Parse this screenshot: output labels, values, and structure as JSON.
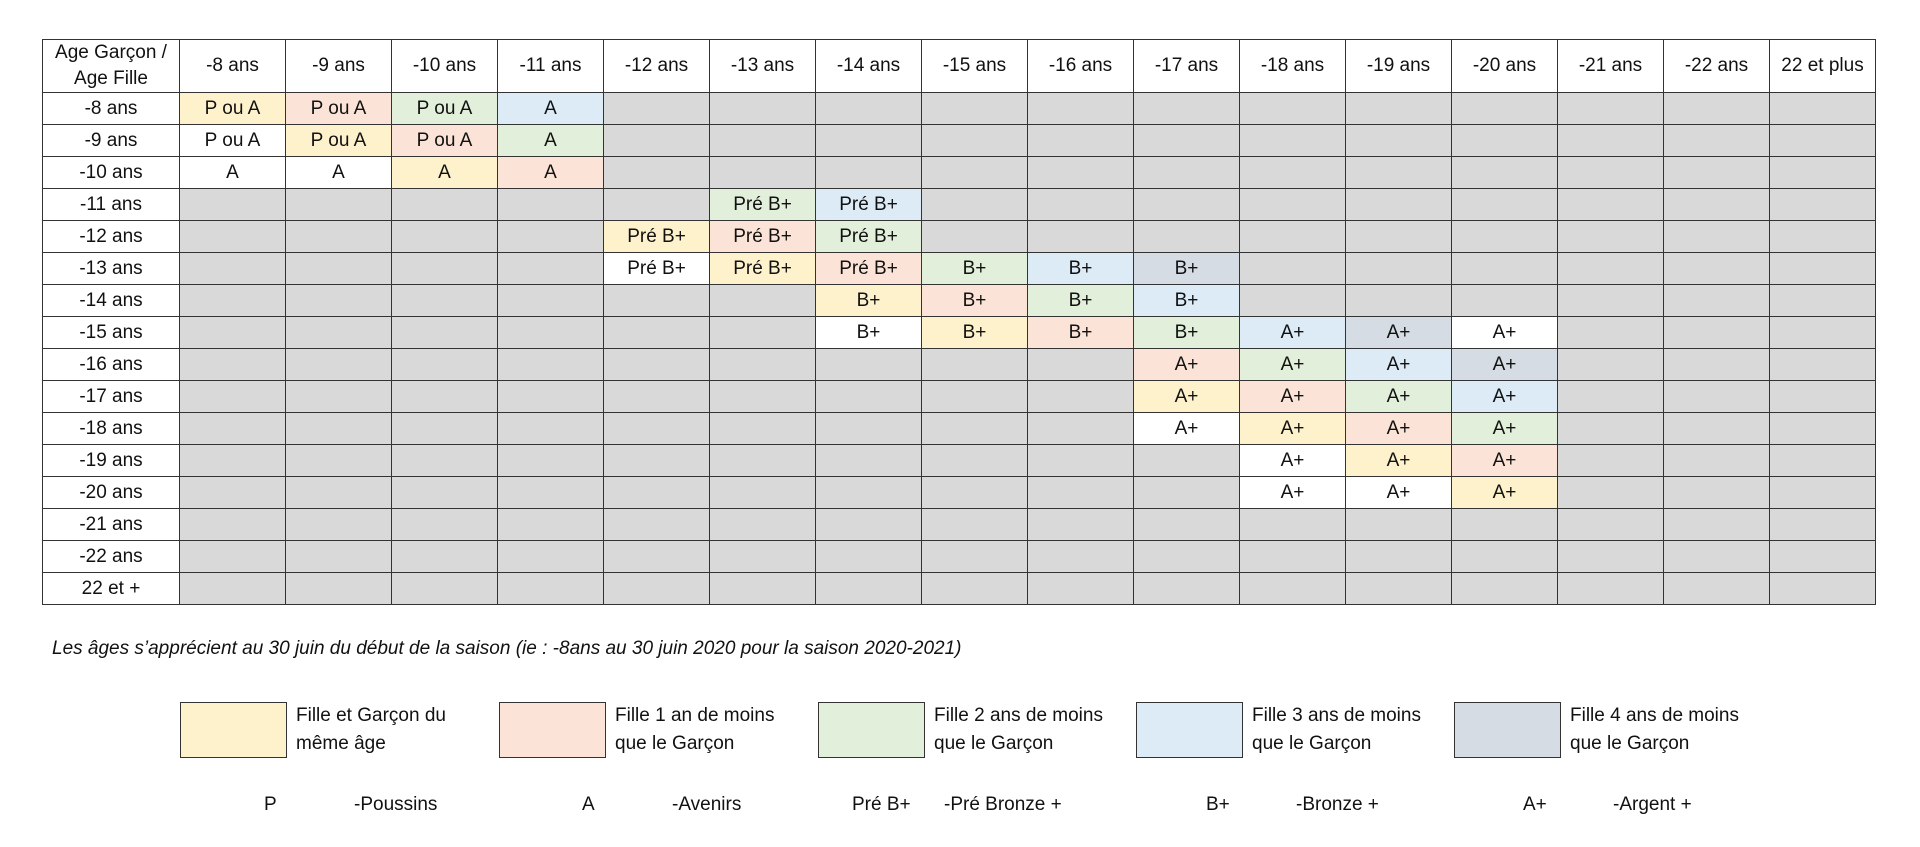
{
  "table": {
    "corner": "Age Garçon / Age Fille",
    "columns": [
      "-8 ans",
      "-9 ans",
      "-10 ans",
      "-11 ans",
      "-12 ans",
      "-13 ans",
      "-14 ans",
      "-15 ans",
      "-16 ans",
      "-17 ans",
      "-18 ans",
      "-19 ans",
      "-20 ans",
      "-21 ans",
      "-22 ans",
      "22 et plus"
    ],
    "rows": [
      {
        "label": "-8 ans",
        "cells": [
          [
            "P ou A",
            "y"
          ],
          [
            "P ou A",
            "o"
          ],
          [
            "P ou A",
            "gr"
          ],
          [
            "A",
            "b"
          ],
          [
            "",
            "g"
          ],
          [
            "",
            "g"
          ],
          [
            "",
            "g"
          ],
          [
            "",
            "g"
          ],
          [
            "",
            "g"
          ],
          [
            "",
            "g"
          ],
          [
            "",
            "g"
          ],
          [
            "",
            "g"
          ],
          [
            "",
            "g"
          ],
          [
            "",
            "g"
          ],
          [
            "",
            "g"
          ],
          [
            "",
            "g"
          ]
        ]
      },
      {
        "label": "-9 ans",
        "cells": [
          [
            "P ou A",
            "w"
          ],
          [
            "P ou A",
            "y"
          ],
          [
            "P ou A",
            "o"
          ],
          [
            "A",
            "gr"
          ],
          [
            "",
            "g"
          ],
          [
            "",
            "g"
          ],
          [
            "",
            "g"
          ],
          [
            "",
            "g"
          ],
          [
            "",
            "g"
          ],
          [
            "",
            "g"
          ],
          [
            "",
            "g"
          ],
          [
            "",
            "g"
          ],
          [
            "",
            "g"
          ],
          [
            "",
            "g"
          ],
          [
            "",
            "g"
          ],
          [
            "",
            "g"
          ]
        ]
      },
      {
        "label": "-10 ans",
        "cells": [
          [
            "A",
            "w"
          ],
          [
            "A",
            "w"
          ],
          [
            "A",
            "y"
          ],
          [
            "A",
            "o"
          ],
          [
            "",
            "g"
          ],
          [
            "",
            "g"
          ],
          [
            "",
            "g"
          ],
          [
            "",
            "g"
          ],
          [
            "",
            "g"
          ],
          [
            "",
            "g"
          ],
          [
            "",
            "g"
          ],
          [
            "",
            "g"
          ],
          [
            "",
            "g"
          ],
          [
            "",
            "g"
          ],
          [
            "",
            "g"
          ],
          [
            "",
            "g"
          ]
        ]
      },
      {
        "label": "-11 ans",
        "cells": [
          [
            "",
            "g"
          ],
          [
            "",
            "g"
          ],
          [
            "",
            "g"
          ],
          [
            "",
            "g"
          ],
          [
            "",
            "g"
          ],
          [
            "Pré B+",
            "gr"
          ],
          [
            "Pré B+",
            "b"
          ],
          [
            "",
            "g"
          ],
          [
            "",
            "g"
          ],
          [
            "",
            "g"
          ],
          [
            "",
            "g"
          ],
          [
            "",
            "g"
          ],
          [
            "",
            "g"
          ],
          [
            "",
            "g"
          ],
          [
            "",
            "g"
          ],
          [
            "",
            "g"
          ]
        ]
      },
      {
        "label": "-12 ans",
        "cells": [
          [
            "",
            "g"
          ],
          [
            "",
            "g"
          ],
          [
            "",
            "g"
          ],
          [
            "",
            "g"
          ],
          [
            "Pré B+",
            "y"
          ],
          [
            "Pré B+",
            "o"
          ],
          [
            "Pré B+",
            "gr"
          ],
          [
            "",
            "g"
          ],
          [
            "",
            "g"
          ],
          [
            "",
            "g"
          ],
          [
            "",
            "g"
          ],
          [
            "",
            "g"
          ],
          [
            "",
            "g"
          ],
          [
            "",
            "g"
          ],
          [
            "",
            "g"
          ],
          [
            "",
            "g"
          ]
        ]
      },
      {
        "label": "-13 ans",
        "cells": [
          [
            "",
            "g"
          ],
          [
            "",
            "g"
          ],
          [
            "",
            "g"
          ],
          [
            "",
            "g"
          ],
          [
            "Pré B+",
            "w"
          ],
          [
            "Pré B+",
            "y"
          ],
          [
            "Pré B+",
            "o"
          ],
          [
            "B+",
            "gr"
          ],
          [
            "B+",
            "b"
          ],
          [
            "B+",
            "s"
          ],
          [
            "",
            "g"
          ],
          [
            "",
            "g"
          ],
          [
            "",
            "g"
          ],
          [
            "",
            "g"
          ],
          [
            "",
            "g"
          ],
          [
            "",
            "g"
          ]
        ]
      },
      {
        "label": "-14 ans",
        "cells": [
          [
            "",
            "g"
          ],
          [
            "",
            "g"
          ],
          [
            "",
            "g"
          ],
          [
            "",
            "g"
          ],
          [
            "",
            "g"
          ],
          [
            "",
            "g"
          ],
          [
            "B+",
            "y"
          ],
          [
            "B+",
            "o"
          ],
          [
            "B+",
            "gr"
          ],
          [
            "B+",
            "b"
          ],
          [
            "",
            "g"
          ],
          [
            "",
            "g"
          ],
          [
            "",
            "g"
          ],
          [
            "",
            "g"
          ],
          [
            "",
            "g"
          ],
          [
            "",
            "g"
          ]
        ]
      },
      {
        "label": "-15 ans",
        "cells": [
          [
            "",
            "g"
          ],
          [
            "",
            "g"
          ],
          [
            "",
            "g"
          ],
          [
            "",
            "g"
          ],
          [
            "",
            "g"
          ],
          [
            "",
            "g"
          ],
          [
            "B+",
            "w"
          ],
          [
            "B+",
            "y"
          ],
          [
            "B+",
            "o"
          ],
          [
            "B+",
            "gr"
          ],
          [
            "A+",
            "b"
          ],
          [
            "A+",
            "s"
          ],
          [
            "A+",
            "w"
          ],
          [
            "",
            "g"
          ],
          [
            "",
            "g"
          ],
          [
            "",
            "g"
          ]
        ]
      },
      {
        "label": "-16 ans",
        "cells": [
          [
            "",
            "g"
          ],
          [
            "",
            "g"
          ],
          [
            "",
            "g"
          ],
          [
            "",
            "g"
          ],
          [
            "",
            "g"
          ],
          [
            "",
            "g"
          ],
          [
            "",
            "g"
          ],
          [
            "",
            "g"
          ],
          [
            "",
            "g"
          ],
          [
            "A+",
            "o"
          ],
          [
            "A+",
            "gr"
          ],
          [
            "A+",
            "b"
          ],
          [
            "A+",
            "s"
          ],
          [
            "",
            "g"
          ],
          [
            "",
            "g"
          ],
          [
            "",
            "g"
          ]
        ]
      },
      {
        "label": "-17 ans",
        "cells": [
          [
            "",
            "g"
          ],
          [
            "",
            "g"
          ],
          [
            "",
            "g"
          ],
          [
            "",
            "g"
          ],
          [
            "",
            "g"
          ],
          [
            "",
            "g"
          ],
          [
            "",
            "g"
          ],
          [
            "",
            "g"
          ],
          [
            "",
            "g"
          ],
          [
            "A+",
            "y"
          ],
          [
            "A+",
            "o"
          ],
          [
            "A+",
            "gr"
          ],
          [
            "A+",
            "b"
          ],
          [
            "",
            "g"
          ],
          [
            "",
            "g"
          ],
          [
            "",
            "g"
          ]
        ]
      },
      {
        "label": "-18 ans",
        "cells": [
          [
            "",
            "g"
          ],
          [
            "",
            "g"
          ],
          [
            "",
            "g"
          ],
          [
            "",
            "g"
          ],
          [
            "",
            "g"
          ],
          [
            "",
            "g"
          ],
          [
            "",
            "g"
          ],
          [
            "",
            "g"
          ],
          [
            "",
            "g"
          ],
          [
            "A+",
            "w"
          ],
          [
            "A+",
            "y"
          ],
          [
            "A+",
            "o"
          ],
          [
            "A+",
            "gr"
          ],
          [
            "",
            "g"
          ],
          [
            "",
            "g"
          ],
          [
            "",
            "g"
          ]
        ]
      },
      {
        "label": "-19 ans",
        "cells": [
          [
            "",
            "g"
          ],
          [
            "",
            "g"
          ],
          [
            "",
            "g"
          ],
          [
            "",
            "g"
          ],
          [
            "",
            "g"
          ],
          [
            "",
            "g"
          ],
          [
            "",
            "g"
          ],
          [
            "",
            "g"
          ],
          [
            "",
            "g"
          ],
          [
            "",
            "g"
          ],
          [
            "A+",
            "w"
          ],
          [
            "A+",
            "y"
          ],
          [
            "A+",
            "o"
          ],
          [
            "",
            "g"
          ],
          [
            "",
            "g"
          ],
          [
            "",
            "g"
          ]
        ]
      },
      {
        "label": "-20 ans",
        "cells": [
          [
            "",
            "g"
          ],
          [
            "",
            "g"
          ],
          [
            "",
            "g"
          ],
          [
            "",
            "g"
          ],
          [
            "",
            "g"
          ],
          [
            "",
            "g"
          ],
          [
            "",
            "g"
          ],
          [
            "",
            "g"
          ],
          [
            "",
            "g"
          ],
          [
            "",
            "g"
          ],
          [
            "A+",
            "w"
          ],
          [
            "A+",
            "w"
          ],
          [
            "A+",
            "y"
          ],
          [
            "",
            "g"
          ],
          [
            "",
            "g"
          ],
          [
            "",
            "g"
          ]
        ]
      },
      {
        "label": "-21 ans",
        "cells": [
          [
            "",
            "g"
          ],
          [
            "",
            "g"
          ],
          [
            "",
            "g"
          ],
          [
            "",
            "g"
          ],
          [
            "",
            "g"
          ],
          [
            "",
            "g"
          ],
          [
            "",
            "g"
          ],
          [
            "",
            "g"
          ],
          [
            "",
            "g"
          ],
          [
            "",
            "g"
          ],
          [
            "",
            "g"
          ],
          [
            "",
            "g"
          ],
          [
            "",
            "g"
          ],
          [
            "",
            "g"
          ],
          [
            "",
            "g"
          ],
          [
            "",
            "g"
          ]
        ]
      },
      {
        "label": "-22 ans",
        "cells": [
          [
            "",
            "g"
          ],
          [
            "",
            "g"
          ],
          [
            "",
            "g"
          ],
          [
            "",
            "g"
          ],
          [
            "",
            "g"
          ],
          [
            "",
            "g"
          ],
          [
            "",
            "g"
          ],
          [
            "",
            "g"
          ],
          [
            "",
            "g"
          ],
          [
            "",
            "g"
          ],
          [
            "",
            "g"
          ],
          [
            "",
            "g"
          ],
          [
            "",
            "g"
          ],
          [
            "",
            "g"
          ],
          [
            "",
            "g"
          ],
          [
            "",
            "g"
          ]
        ]
      },
      {
        "label": "22 et +",
        "cells": [
          [
            "",
            "g"
          ],
          [
            "",
            "g"
          ],
          [
            "",
            "g"
          ],
          [
            "",
            "g"
          ],
          [
            "",
            "g"
          ],
          [
            "",
            "g"
          ],
          [
            "",
            "g"
          ],
          [
            "",
            "g"
          ],
          [
            "",
            "g"
          ],
          [
            "",
            "g"
          ],
          [
            "",
            "g"
          ],
          [
            "",
            "g"
          ],
          [
            "",
            "g"
          ],
          [
            "",
            "g"
          ],
          [
            "",
            "g"
          ],
          [
            "",
            "g"
          ]
        ]
      }
    ]
  },
  "note": "Les âges s’apprécient au 30 juin du début de la saison (ie : -8ans au 30 juin 2020 pour la saison 2020-2021)",
  "legend": [
    {
      "text": "Fille et Garçon du même âge",
      "color": "#fdf2cc"
    },
    {
      "text": "Fille 1 an de moins que le Garçon",
      "color": "#fbe4d7"
    },
    {
      "text": "Fille 2 ans de moins que le Garçon",
      "color": "#e2efda"
    },
    {
      "text": "Fille 3 ans de moins que le Garçon",
      "color": "#ddebf7"
    },
    {
      "text": "Fille 4 ans de moins que le Garçon",
      "color": "#d6dce4"
    }
  ],
  "abbreviations": [
    {
      "code": "P",
      "meaning": "-Poussins"
    },
    {
      "code": "A",
      "meaning": "-Avenirs"
    },
    {
      "code": "Pré B+",
      "meaning": "-Pré Bronze +"
    },
    {
      "code": "B+",
      "meaning": "-Bronze +"
    },
    {
      "code": "A+",
      "meaning": "-Argent +"
    }
  ],
  "colors": {
    "same_age": "#fdf2cc",
    "one_year": "#fbe4d7",
    "two_years": "#e2efda",
    "three_years": "#ddebf7",
    "four_years": "#d6dce4",
    "not_allowed": "#d9d9d9",
    "allowed_plain": "#ffffff"
  }
}
